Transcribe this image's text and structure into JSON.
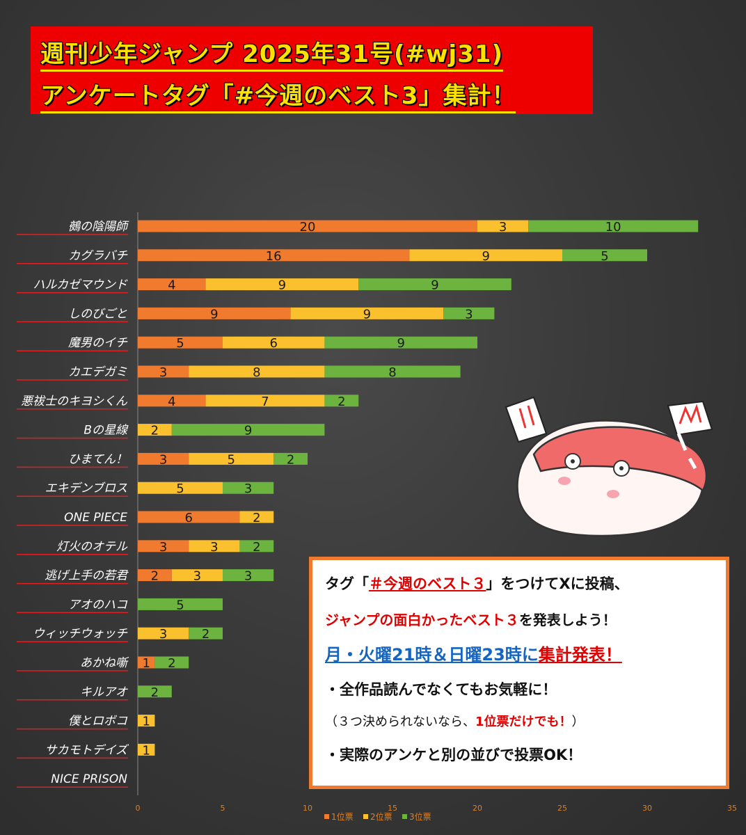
{
  "title": {
    "line1": "週刊少年ジャンプ 2025年31号(#wj31)",
    "line2": "アンケートタグ「#今週のベスト3」集計！"
  },
  "colors": {
    "first": "#f07a2e",
    "second": "#fbc02d",
    "third": "#6cb43f",
    "title_bg": "#ef0000",
    "title_text": "#ffe100",
    "box_border": "#f07a2e"
  },
  "chart_data": {
    "type": "bar",
    "orientation": "horizontal",
    "stacked": true,
    "categories": [
      "鵺の陰陽師",
      "カグラバチ",
      "ハルカゼマウンド",
      "しのびごと",
      "魔男のイチ",
      "カエデガミ",
      "悪祓士のキヨシくん",
      "Bの星線",
      "ひまてん！",
      "エキデンブロス",
      "ONE PIECE",
      "灯火のオテル",
      "逃げ上手の若君",
      "アオのハコ",
      "ウィッチウォッチ",
      "あかね噺",
      "キルアオ",
      "僕とロボコ",
      "サカモトデイズ",
      "NICE PRISON"
    ],
    "series": [
      {
        "name": "1位票",
        "values": [
          20,
          16,
          4,
          9,
          5,
          3,
          4,
          0,
          3,
          0,
          6,
          3,
          2,
          0,
          0,
          1,
          0,
          0,
          0,
          0
        ]
      },
      {
        "name": "2位票",
        "values": [
          3,
          9,
          9,
          9,
          6,
          8,
          7,
          2,
          5,
          5,
          2,
          3,
          3,
          0,
          3,
          0,
          0,
          1,
          1,
          0
        ]
      },
      {
        "name": "3位票",
        "values": [
          10,
          5,
          9,
          3,
          9,
          8,
          2,
          9,
          2,
          3,
          0,
          2,
          3,
          5,
          2,
          2,
          2,
          0,
          0,
          0
        ]
      }
    ],
    "xlim": [
      0,
      35
    ],
    "xticks": [
      0,
      5,
      10,
      15,
      20,
      25,
      30,
      35
    ],
    "legend_position": "bottom",
    "grid": false
  },
  "info": {
    "l1_pre": "タグ「",
    "l1_tag": "＃今週のベスト３",
    "l1_post": "」をつけてXに投稿、",
    "l2_red": "ジャンプの面白かったベスト３",
    "l2_post": "を発表しよう！",
    "l3_blue": "月・火曜21時＆日曜23時に",
    "l3_red": "集計発表！",
    "l4": "・全作品読んでなくてもお気軽に！",
    "l5_pre": "（３つ決められないなら、",
    "l5_red": "1位票だけでも！",
    "l5_post": "）",
    "l6": "・実際のアンケと別の並びで投票OK！"
  },
  "mascot": {
    "icon": "pink-blob-mascot-icon"
  }
}
